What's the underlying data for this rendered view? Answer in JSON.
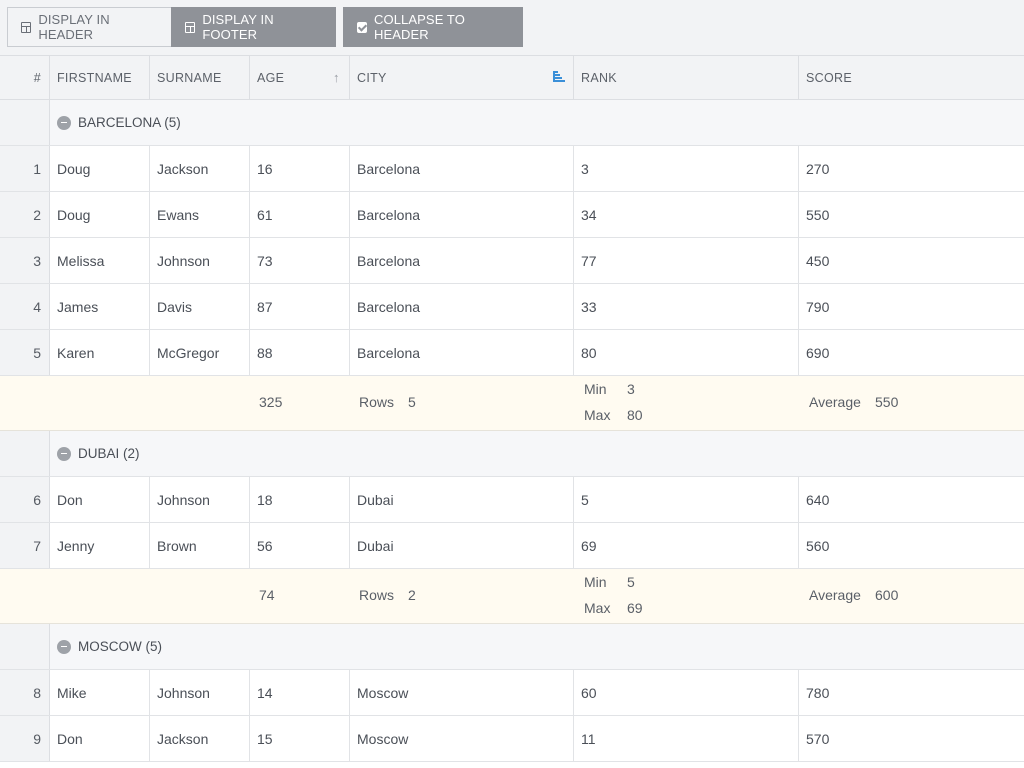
{
  "toolbar": {
    "buttons": [
      {
        "label": "DISPLAY IN HEADER",
        "icon": "grid-icon"
      },
      {
        "label": "DISPLAY IN FOOTER",
        "icon": "grid-icon"
      },
      {
        "label": "COLLAPSE TO HEADER",
        "icon": "checkbox-icon"
      }
    ]
  },
  "columns": {
    "rownum": "#",
    "firstname": "FIRSTNAME",
    "surname": "SURNAME",
    "age": "AGE",
    "city": "CITY",
    "rank": "RANK",
    "score": "SCORE"
  },
  "groups": [
    {
      "label": "BARCELONA (5)",
      "rows": [
        {
          "n": "1",
          "first": "Doug",
          "last": "Jackson",
          "age": "16",
          "city": "Barcelona",
          "rank": "3",
          "score": "270"
        },
        {
          "n": "2",
          "first": "Doug",
          "last": "Ewans",
          "age": "61",
          "city": "Barcelona",
          "rank": "34",
          "score": "550"
        },
        {
          "n": "3",
          "first": "Melissa",
          "last": "Johnson",
          "age": "73",
          "city": "Barcelona",
          "rank": "77",
          "score": "450"
        },
        {
          "n": "4",
          "first": "James",
          "last": "Davis",
          "age": "87",
          "city": "Barcelona",
          "rank": "33",
          "score": "790"
        },
        {
          "n": "5",
          "first": "Karen",
          "last": "McGregor",
          "age": "88",
          "city": "Barcelona",
          "rank": "80",
          "score": "690"
        }
      ],
      "summary": {
        "age_sum": "325",
        "rows_label": "Rows",
        "rows_value": "5",
        "min_label": "Min",
        "min_value": "3",
        "max_label": "Max",
        "max_value": "80",
        "avg_label": "Average",
        "avg_value": "550"
      }
    },
    {
      "label": "DUBAI (2)",
      "rows": [
        {
          "n": "6",
          "first": "Don",
          "last": "Johnson",
          "age": "18",
          "city": "Dubai",
          "rank": "5",
          "score": "640"
        },
        {
          "n": "7",
          "first": "Jenny",
          "last": "Brown",
          "age": "56",
          "city": "Dubai",
          "rank": "69",
          "score": "560"
        }
      ],
      "summary": {
        "age_sum": "74",
        "rows_label": "Rows",
        "rows_value": "2",
        "min_label": "Min",
        "min_value": "5",
        "max_label": "Max",
        "max_value": "69",
        "avg_label": "Average",
        "avg_value": "600"
      }
    },
    {
      "label": "MOSCOW (5)",
      "rows": [
        {
          "n": "8",
          "first": "Mike",
          "last": "Johnson",
          "age": "14",
          "city": "Moscow",
          "rank": "60",
          "score": "780"
        },
        {
          "n": "9",
          "first": "Don",
          "last": "Jackson",
          "age": "15",
          "city": "Moscow",
          "rank": "11",
          "score": "570"
        }
      ]
    }
  ]
}
